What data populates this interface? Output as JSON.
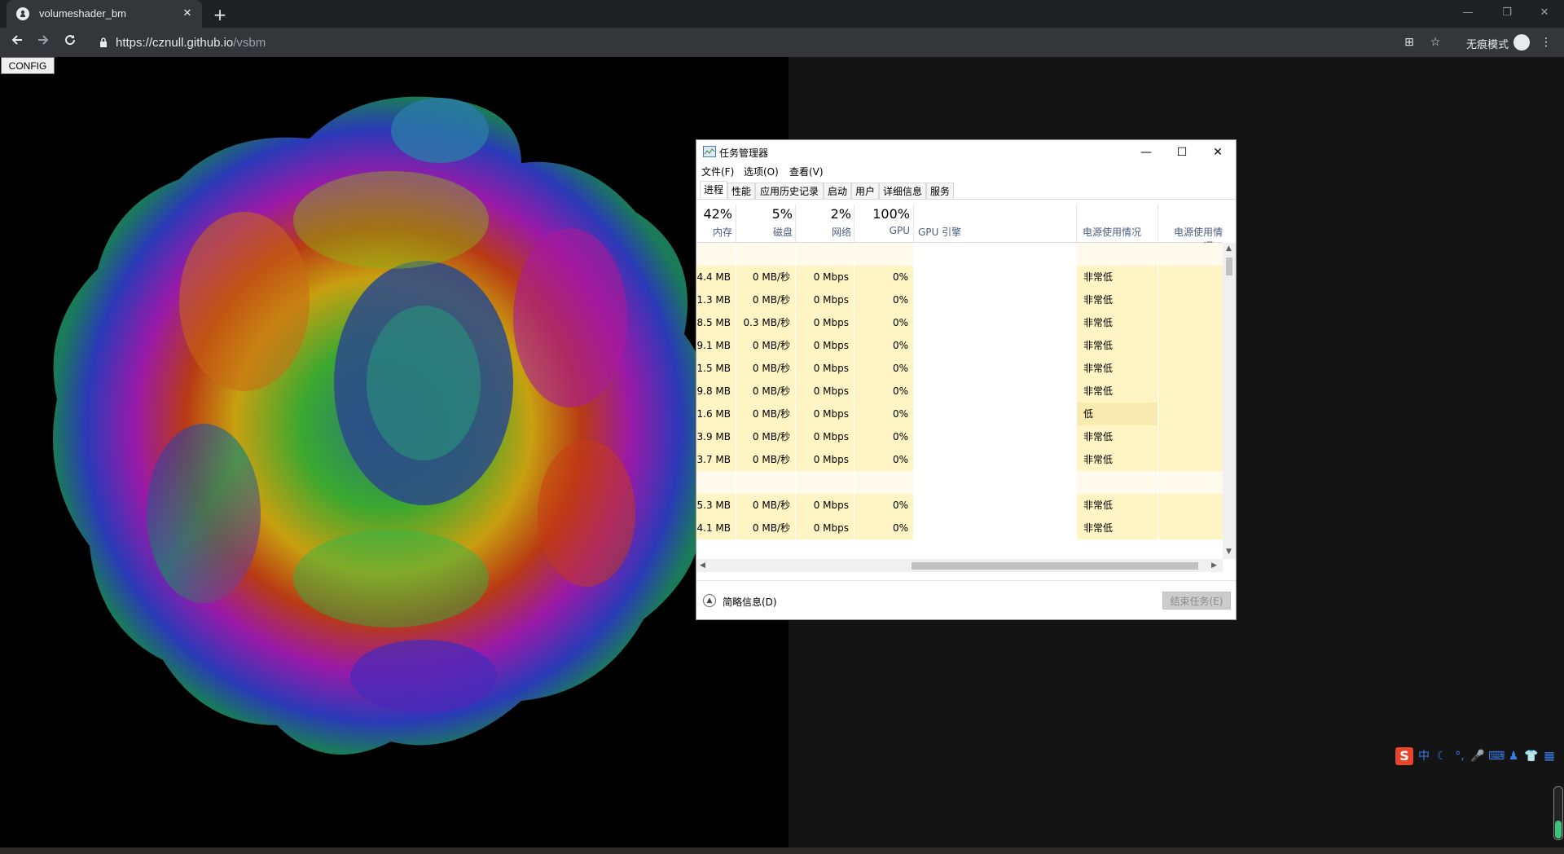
{
  "browser": {
    "tab_title": "volumeshader_bm",
    "tab_close": "✕",
    "new_tab": "+",
    "url_host": "https://cznull.github.io",
    "url_path": "/vsbm",
    "incognito_label": "无痕模式",
    "icons": {
      "back": "arrow-left",
      "forward": "arrow-right",
      "reload": "reload",
      "lock": "lock",
      "translate": "translate",
      "star": "star",
      "menu": "three-dots"
    },
    "window_controls": [
      "—",
      "❐",
      "✕"
    ]
  },
  "page": {
    "config_button": "CONFIG"
  },
  "task_manager": {
    "title": "任务管理器",
    "window_controls": [
      "—",
      "☐",
      "✕"
    ],
    "menu": [
      "文件(F)",
      "选项(O)",
      "查看(V)"
    ],
    "tabs": [
      "进程",
      "性能",
      "应用历史记录",
      "启动",
      "用户",
      "详细信息",
      "服务"
    ],
    "active_tab": "进程",
    "columns": [
      {
        "pct": "42%",
        "name": "内存"
      },
      {
        "pct": "5%",
        "name": "磁盘"
      },
      {
        "pct": "2%",
        "name": "网络"
      },
      {
        "pct": "100%",
        "name": "GPU"
      },
      {
        "pct": "",
        "name": "GPU 引擎"
      },
      {
        "pct": "",
        "name": "电源使用情况"
      },
      {
        "pct": "",
        "name": "电源使用情况..."
      }
    ],
    "rows": [
      {
        "mem": "",
        "disk": "",
        "net": "",
        "gpu": "",
        "power": ""
      },
      {
        "mem": "4.4 MB",
        "disk": "0 MB/秒",
        "net": "0 Mbps",
        "gpu": "0%",
        "power": "非常低"
      },
      {
        "mem": "1.3 MB",
        "disk": "0 MB/秒",
        "net": "0 Mbps",
        "gpu": "0%",
        "power": "非常低"
      },
      {
        "mem": "8.5 MB",
        "disk": "0.3 MB/秒",
        "net": "0 Mbps",
        "gpu": "0%",
        "power": "非常低"
      },
      {
        "mem": "9.1 MB",
        "disk": "0 MB/秒",
        "net": "0 Mbps",
        "gpu": "0%",
        "power": "非常低"
      },
      {
        "mem": "1.5 MB",
        "disk": "0 MB/秒",
        "net": "0 Mbps",
        "gpu": "0%",
        "power": "非常低"
      },
      {
        "mem": "9.8 MB",
        "disk": "0 MB/秒",
        "net": "0 Mbps",
        "gpu": "0%",
        "power": "非常低"
      },
      {
        "mem": "1.6 MB",
        "disk": "0 MB/秒",
        "net": "0 Mbps",
        "gpu": "0%",
        "power": "低"
      },
      {
        "mem": "3.9 MB",
        "disk": "0 MB/秒",
        "net": "0 Mbps",
        "gpu": "0%",
        "power": "非常低"
      },
      {
        "mem": "3.7 MB",
        "disk": "0 MB/秒",
        "net": "0 Mbps",
        "gpu": "0%",
        "power": "非常低"
      },
      {
        "mem": "",
        "disk": "",
        "net": "",
        "gpu": "",
        "power": ""
      },
      {
        "mem": "5.3 MB",
        "disk": "0 MB/秒",
        "net": "0 Mbps",
        "gpu": "0%",
        "power": "非常低"
      },
      {
        "mem": "4.1 MB",
        "disk": "0 MB/秒",
        "net": "0 Mbps",
        "gpu": "0%",
        "power": "非常低"
      }
    ],
    "fewer_details": "简略信息(D)",
    "end_task": "结束任务(E)"
  },
  "ime_toolbar": {
    "logo": "S",
    "items": [
      "中",
      "☾",
      "°,",
      "🎤",
      "⌨",
      "♟",
      "👕",
      "▦"
    ]
  },
  "colors": {
    "browser_frame": "#202124",
    "toolbar": "#35363a",
    "cell_highlight": "#fff4c4",
    "column_header_text": "#4d6082"
  }
}
